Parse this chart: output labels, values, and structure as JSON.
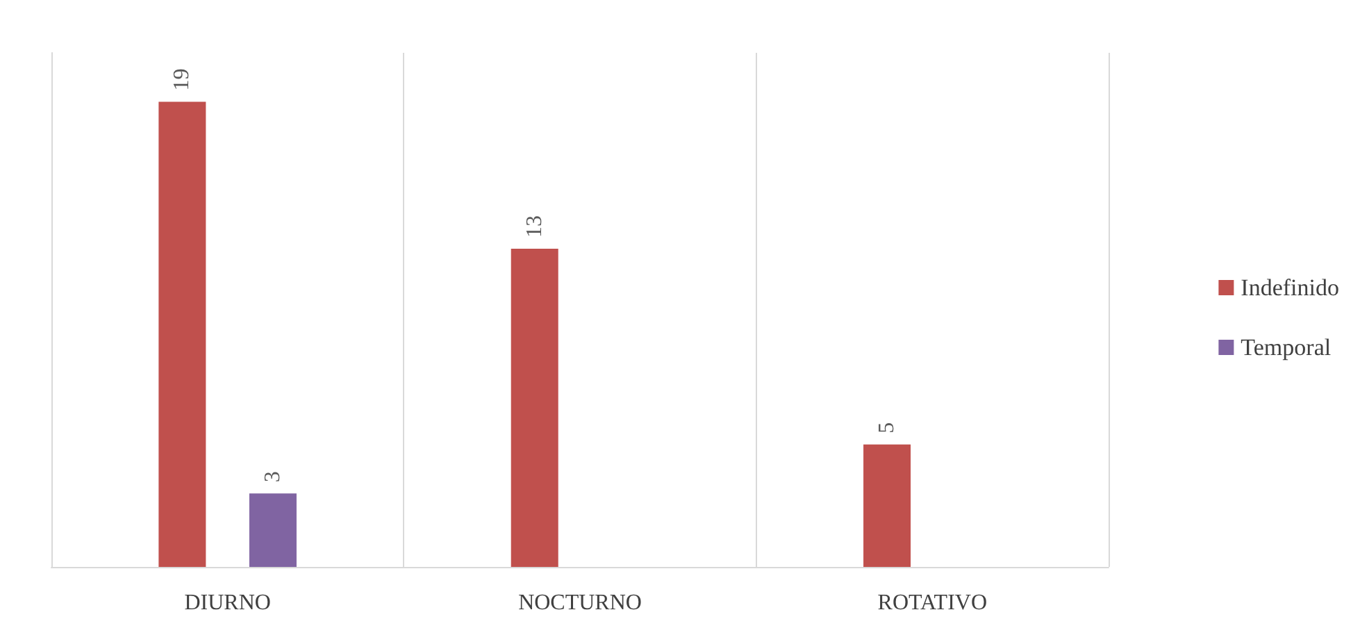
{
  "chart_data": {
    "type": "bar",
    "categories": [
      "DIURNO",
      "NOCTURNO",
      "ROTATIVO"
    ],
    "series": [
      {
        "name": "Indefinido",
        "color": "#c0504d",
        "values": [
          19,
          13,
          5
        ]
      },
      {
        "name": "Temporal",
        "color": "#8064a2",
        "values": [
          3,
          null,
          null
        ]
      }
    ],
    "data_labels": true,
    "grid": "x",
    "legend": "right",
    "tick_labels": "x"
  }
}
